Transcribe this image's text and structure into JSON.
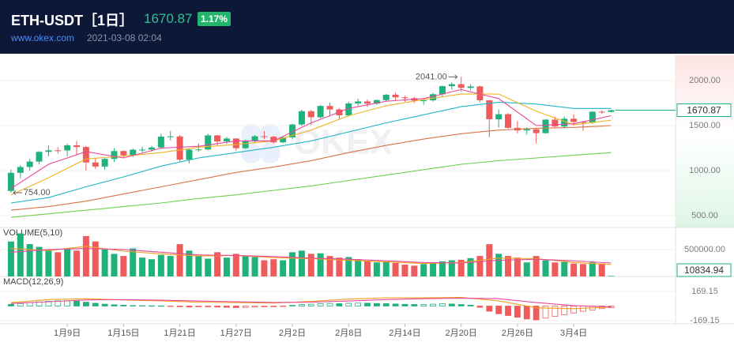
{
  "header": {
    "title": "ETH-USDT［1日］",
    "price": "1670.87",
    "change": "1.17%",
    "site": "www.okex.com",
    "datetime": "2021-03-08 02:04"
  },
  "watermark": "OKEX",
  "chart_data": [
    {
      "type": "candlestick",
      "up_color": "#1fb27a",
      "down_color": "#ef5b5b",
      "grid": true,
      "categories": [
        null,
        null,
        null,
        null,
        null,
        null,
        "1月9日",
        null,
        null,
        null,
        null,
        null,
        "1月15日",
        null,
        null,
        null,
        null,
        null,
        "1月21日",
        null,
        null,
        null,
        null,
        null,
        "1月27日",
        null,
        null,
        null,
        null,
        null,
        "2月2日",
        null,
        null,
        null,
        null,
        null,
        "2月8日",
        null,
        null,
        null,
        null,
        null,
        "2月14日",
        null,
        null,
        null,
        null,
        null,
        "2月20日",
        null,
        null,
        null,
        null,
        null,
        "2月26日",
        null,
        null,
        null,
        null,
        null,
        "3月4日",
        null,
        null,
        null,
        null
      ],
      "open": [
        774,
        975,
        1040,
        1100,
        1208,
        1225,
        1224,
        1281,
        1262,
        1090,
        1045,
        1130,
        1217,
        1170,
        1232,
        1233,
        1257,
        1377,
        1380,
        1121,
        1233,
        1235,
        1391,
        1324,
        1356,
        1249,
        1330,
        1381,
        1376,
        1314,
        1369,
        1512,
        1660,
        1593,
        1718,
        1679,
        1614,
        1746,
        1768,
        1744,
        1783,
        1843,
        1814,
        1804,
        1778,
        1781,
        1848,
        1938,
        1960,
        1919,
        1935,
        1781,
        1570,
        1626,
        1475,
        1446,
        1459,
        1416,
        1566,
        1490,
        1576,
        1540,
        1532,
        1654,
        1652
      ],
      "high": [
        1010,
        1060,
        1130,
        1215,
        1280,
        1260,
        1300,
        1330,
        1275,
        1140,
        1140,
        1250,
        1225,
        1245,
        1265,
        1275,
        1410,
        1440,
        1395,
        1250,
        1300,
        1410,
        1395,
        1375,
        1360,
        1345,
        1395,
        1440,
        1385,
        1380,
        1520,
        1675,
        1675,
        1730,
        1755,
        1695,
        1765,
        1800,
        1790,
        1790,
        1850,
        1865,
        1830,
        1820,
        1795,
        1865,
        1945,
        1980,
        2041,
        1960,
        1945,
        1785,
        1680,
        1640,
        1550,
        1480,
        1475,
        1570,
        1600,
        1600,
        1625,
        1550,
        1660,
        1670,
        1675
      ],
      "low": [
        754,
        915,
        1000,
        1070,
        1160,
        1190,
        1160,
        1175,
        1000,
        1020,
        1010,
        1095,
        1140,
        1150,
        1200,
        1210,
        1240,
        1335,
        1100,
        1080,
        1210,
        1225,
        1270,
        1300,
        1220,
        1240,
        1310,
        1350,
        1300,
        1305,
        1350,
        1495,
        1505,
        1580,
        1600,
        1570,
        1600,
        1720,
        1710,
        1730,
        1770,
        1780,
        1765,
        1750,
        1730,
        1765,
        1820,
        1900,
        1880,
        1890,
        1760,
        1370,
        1480,
        1465,
        1415,
        1400,
        1300,
        1410,
        1470,
        1470,
        1500,
        1440,
        1520,
        1630,
        1645
      ],
      "close": [
        975,
        1040,
        1100,
        1208,
        1225,
        1224,
        1281,
        1262,
        1090,
        1045,
        1130,
        1217,
        1170,
        1232,
        1233,
        1257,
        1377,
        1380,
        1121,
        1233,
        1235,
        1391,
        1324,
        1356,
        1249,
        1330,
        1381,
        1376,
        1314,
        1369,
        1512,
        1660,
        1593,
        1718,
        1679,
        1614,
        1746,
        1768,
        1744,
        1783,
        1843,
        1814,
        1804,
        1778,
        1781,
        1848,
        1938,
        1960,
        1919,
        1935,
        1781,
        1570,
        1626,
        1475,
        1446,
        1459,
        1416,
        1566,
        1490,
        1576,
        1540,
        1532,
        1654,
        1652,
        1670.87
      ],
      "high_labels": [
        null,
        null,
        null,
        null,
        null,
        null,
        null,
        null,
        null,
        null,
        null,
        null,
        null,
        null,
        null,
        null,
        null,
        null,
        null,
        null,
        null,
        null,
        null,
        null,
        null,
        null,
        null,
        null,
        null,
        null,
        null,
        null,
        null,
        null,
        null,
        null,
        null,
        null,
        null,
        null,
        null,
        null,
        null,
        null,
        null,
        null,
        null,
        null,
        "2041.00",
        null,
        null,
        null,
        null,
        null,
        null,
        null,
        null,
        null,
        null,
        null,
        null,
        null,
        null,
        null,
        null
      ],
      "low_labels": [
        "754.00",
        null,
        null,
        null,
        null,
        null,
        null,
        null,
        null,
        null,
        null,
        null,
        null,
        null,
        null,
        null,
        null,
        null,
        null,
        null,
        null,
        null,
        null,
        null,
        null,
        null,
        null,
        null,
        null,
        null,
        null,
        null,
        null,
        null,
        null,
        null,
        null,
        null,
        null,
        null,
        null,
        null,
        null,
        null,
        null,
        null,
        null,
        null,
        null,
        null,
        null,
        null,
        null,
        null,
        null,
        null,
        null,
        null,
        null,
        null,
        null,
        null,
        null,
        null,
        null
      ],
      "close_labels": [
        null,
        null,
        null,
        null,
        null,
        null,
        null,
        null,
        null,
        null,
        null,
        null,
        null,
        null,
        null,
        null,
        null,
        null,
        null,
        null,
        null,
        null,
        null,
        null,
        null,
        null,
        null,
        null,
        null,
        null,
        null,
        null,
        null,
        null,
        null,
        null,
        null,
        null,
        null,
        null,
        null,
        null,
        null,
        null,
        null,
        null,
        null,
        null,
        null,
        null,
        null,
        null,
        null,
        null,
        null,
        null,
        null,
        null,
        null,
        null,
        null,
        null,
        null,
        null,
        "1670.87"
      ],
      "lines": [
        {
          "color": "#6bd04f",
          "x": [
            0,
            4,
            8,
            12,
            16,
            20,
            24,
            28,
            32,
            36,
            40,
            44,
            48,
            52,
            56,
            60,
            64
          ],
          "values": [
            480,
            520,
            560,
            600,
            640,
            690,
            730,
            780,
            830,
            890,
            950,
            1010,
            1070,
            1110,
            1140,
            1170,
            1200
          ]
        },
        {
          "color": "#d9754a",
          "x": [
            0,
            4,
            8,
            12,
            16,
            20,
            24,
            28,
            32,
            36,
            40,
            44,
            48,
            52,
            56,
            60,
            64
          ],
          "values": [
            560,
            600,
            660,
            740,
            820,
            900,
            980,
            1040,
            1110,
            1200,
            1280,
            1350,
            1410,
            1450,
            1470,
            1480,
            1500
          ]
        },
        {
          "color": "#20b5c4",
          "x": [
            0,
            4,
            8,
            12,
            16,
            20,
            24,
            28,
            32,
            36,
            40,
            44,
            48,
            52,
            56,
            60,
            64
          ],
          "values": [
            640,
            700,
            820,
            930,
            1050,
            1140,
            1200,
            1260,
            1330,
            1430,
            1530,
            1620,
            1710,
            1760,
            1740,
            1690,
            1690
          ]
        },
        {
          "color": "#f0b323",
          "x": [
            0,
            4,
            8,
            12,
            16,
            20,
            24,
            28,
            32,
            36,
            40,
            44,
            48,
            52,
            56,
            60,
            64
          ],
          "values": [
            730,
            920,
            1130,
            1160,
            1200,
            1260,
            1290,
            1330,
            1450,
            1610,
            1720,
            1790,
            1850,
            1850,
            1660,
            1510,
            1560
          ]
        },
        {
          "color": "#e8489a",
          "x": [
            0,
            4,
            8,
            12,
            16,
            20,
            24,
            28,
            32,
            36,
            40,
            44,
            48,
            52,
            56,
            60,
            64
          ],
          "values": [
            800,
            1070,
            1210,
            1140,
            1250,
            1270,
            1330,
            1330,
            1530,
            1690,
            1770,
            1800,
            1900,
            1800,
            1500,
            1520,
            1610
          ]
        }
      ],
      "ylim": [
        368,
        2281
      ],
      "yticks": [
        {
          "value": 2000,
          "label": "2000.00"
        },
        {
          "value": 1500,
          "label": "1500.00"
        },
        {
          "value": 1000,
          "label": "1000.00"
        },
        {
          "value": 500,
          "label": "500.00"
        }
      ]
    },
    {
      "type": "bar",
      "title": "VOLUME(5,10)",
      "grid": true,
      "values": [
        650000,
        800000,
        600000,
        550000,
        500000,
        450000,
        520000,
        480000,
        750000,
        650000,
        500000,
        420000,
        380000,
        520000,
        350000,
        320000,
        400000,
        380000,
        600000,
        480000,
        380000,
        330000,
        450000,
        350000,
        420000,
        380000,
        360000,
        300000,
        320000,
        300000,
        450000,
        480000,
        420000,
        430000,
        380000,
        350000,
        360000,
        320000,
        280000,
        260000,
        280000,
        250000,
        220000,
        200000,
        230000,
        260000,
        280000,
        300000,
        310000,
        340000,
        380000,
        600000,
        420000,
        380000,
        350000,
        260000,
        380000,
        300000,
        260000,
        270000,
        240000,
        230000,
        260000,
        240000,
        10834.94
      ],
      "value_labels": [
        null,
        null,
        null,
        null,
        null,
        null,
        null,
        null,
        null,
        null,
        null,
        null,
        null,
        null,
        null,
        null,
        null,
        null,
        null,
        null,
        null,
        null,
        null,
        null,
        null,
        null,
        null,
        null,
        null,
        null,
        null,
        null,
        null,
        null,
        null,
        null,
        null,
        null,
        null,
        null,
        null,
        null,
        null,
        null,
        null,
        null,
        null,
        null,
        null,
        null,
        null,
        null,
        null,
        null,
        null,
        null,
        null,
        null,
        null,
        null,
        null,
        null,
        null,
        null,
        "10834.94"
      ],
      "lines": [
        {
          "color": "#f0a020",
          "x": [
            0,
            4,
            8,
            12,
            16,
            20,
            24,
            28,
            32,
            36,
            40,
            44,
            48,
            52,
            56,
            60,
            64
          ],
          "values": [
            520000,
            480000,
            560000,
            470000,
            420000,
            380000,
            390000,
            350000,
            330000,
            300000,
            270000,
            240000,
            260000,
            340000,
            330000,
            260000,
            220000
          ]
        },
        {
          "color": "#e8489a",
          "x": [
            0,
            4,
            8,
            12,
            16,
            20,
            24,
            28,
            32,
            36,
            40,
            44,
            48,
            52,
            56,
            60,
            64
          ],
          "values": [
            450000,
            500000,
            520000,
            500000,
            450000,
            400000,
            390000,
            370000,
            340000,
            320000,
            290000,
            260000,
            250000,
            300000,
            320000,
            290000,
            250000
          ]
        }
      ],
      "ylim": [
        0,
        910000
      ],
      "yticks": [
        {
          "value": 500000,
          "label": "500000.00"
        }
      ]
    },
    {
      "type": "macd",
      "title": "MACD(12,26,9)",
      "up_color": "#1fb27a",
      "down_color": "#ef5b5b",
      "grid": true,
      "values": [
        20,
        30,
        40,
        48,
        55,
        60,
        62,
        58,
        45,
        32,
        22,
        15,
        10,
        6,
        4,
        3,
        2,
        -3,
        -8,
        -12,
        -10,
        -8,
        -12,
        -15,
        -18,
        -16,
        -12,
        -10,
        -8,
        -4,
        8,
        18,
        22,
        28,
        30,
        28,
        32,
        34,
        33,
        30,
        28,
        24,
        20,
        18,
        18,
        22,
        26,
        24,
        18,
        10,
        -15,
        -60,
        -90,
        -110,
        -130,
        -150,
        -160,
        -140,
        -120,
        -100,
        -80,
        -60,
        -45,
        -30,
        -20
      ],
      "lines": [
        {
          "color": "#f0a020",
          "x": [
            0,
            4,
            8,
            12,
            16,
            20,
            24,
            28,
            32,
            36,
            40,
            44,
            48,
            52,
            56,
            60,
            64
          ],
          "values": [
            40,
            75,
            85,
            70,
            60,
            45,
            40,
            35,
            55,
            80,
            95,
            95,
            100,
            60,
            -20,
            -30,
            -10
          ]
        },
        {
          "color": "#e8489a",
          "x": [
            0,
            4,
            8,
            12,
            16,
            20,
            24,
            28,
            32,
            36,
            40,
            44,
            48,
            52,
            56,
            60,
            64
          ],
          "values": [
            30,
            50,
            70,
            75,
            68,
            58,
            50,
            42,
            45,
            58,
            75,
            85,
            92,
            85,
            40,
            5,
            -10
          ]
        }
      ],
      "ylim": [
        -206,
        343
      ],
      "yticks": [
        169.15,
        -169.15
      ]
    }
  ]
}
